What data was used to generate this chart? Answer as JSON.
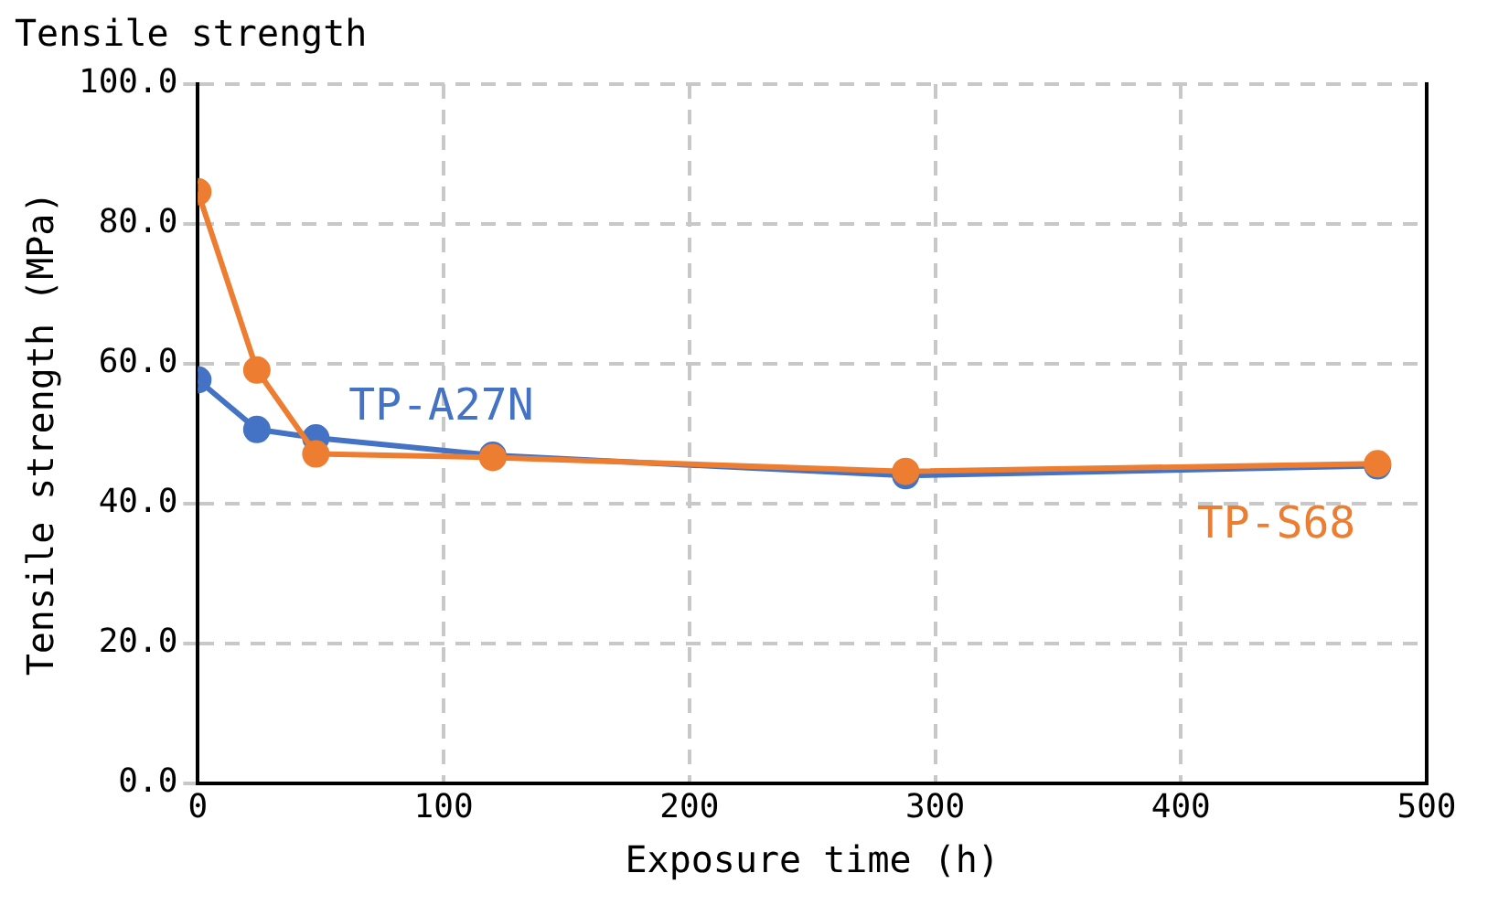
{
  "chart_data": {
    "type": "line",
    "title": "Tensile strength",
    "xlabel": "Exposure time (h)",
    "ylabel": "Tensile strength (MPa)",
    "x": [
      0,
      24,
      48,
      120,
      288,
      480
    ],
    "series": [
      {
        "name": "TP-A27N",
        "color": "#4472c4",
        "values": [
          57.7,
          50.6,
          49.4,
          46.9,
          44.0,
          45.4
        ]
      },
      {
        "name": "TP-S68",
        "color": "#ed7d31",
        "values": [
          84.6,
          59.1,
          47.1,
          46.6,
          44.6,
          45.7
        ]
      }
    ],
    "xlim": [
      0,
      500
    ],
    "xticks": [
      0,
      100,
      200,
      300,
      400,
      500
    ],
    "ylim": [
      0,
      100
    ],
    "yticks": [
      {
        "value": 0,
        "label": "0.0"
      },
      {
        "value": 20,
        "label": "20.0"
      },
      {
        "value": 40,
        "label": "40.0"
      },
      {
        "value": 60,
        "label": "60.0"
      },
      {
        "value": 80,
        "label": "80.0"
      },
      {
        "value": 100,
        "label": "100.0"
      }
    ],
    "grid": true,
    "legend": false,
    "marker": "circle",
    "line_style": "solid"
  }
}
